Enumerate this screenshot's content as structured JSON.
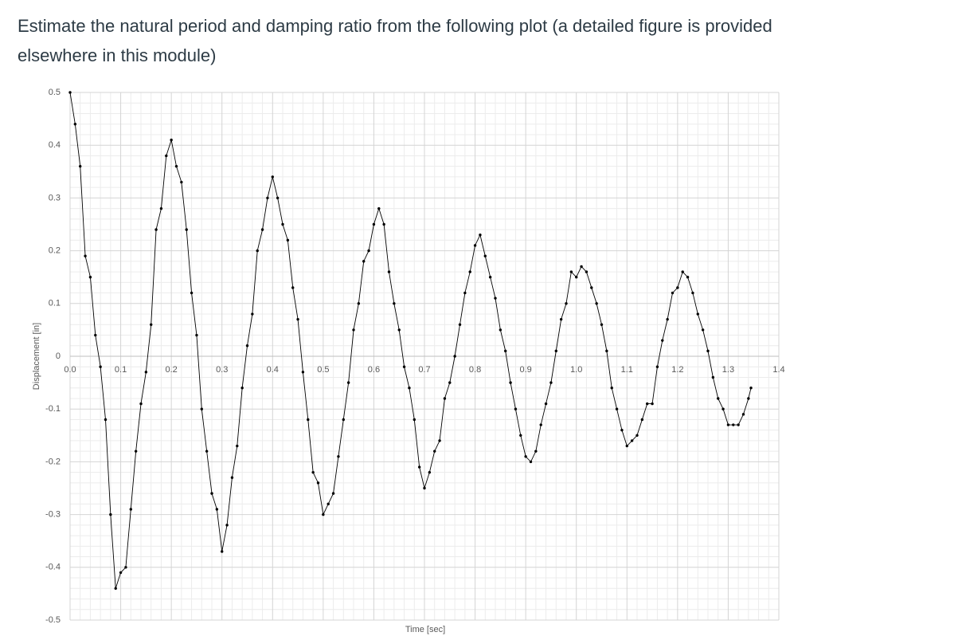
{
  "question": "Estimate the natural period and damping ratio from the following plot (a detailed figure is provided elsewhere in this module)",
  "chart_data": {
    "type": "line",
    "xlabel": "Time [sec]",
    "ylabel": "Displacement [in]",
    "x": [
      0,
      0.01,
      0.02,
      0.03,
      0.04,
      0.05,
      0.06,
      0.07,
      0.08,
      0.09,
      0.1,
      0.11,
      0.12,
      0.13,
      0.14,
      0.15,
      0.16,
      0.17,
      0.18,
      0.19,
      0.2,
      0.21,
      0.22,
      0.23,
      0.24,
      0.25,
      0.26,
      0.27,
      0.28,
      0.29,
      0.3,
      0.31,
      0.32,
      0.33,
      0.34,
      0.35,
      0.36,
      0.37,
      0.38,
      0.39,
      0.4,
      0.41,
      0.42,
      0.43,
      0.44,
      0.45,
      0.46,
      0.47,
      0.48,
      0.49,
      0.5,
      0.51,
      0.52,
      0.53,
      0.54,
      0.55,
      0.56,
      0.57,
      0.58,
      0.59,
      0.6,
      0.61,
      0.62,
      0.63,
      0.64,
      0.65,
      0.66,
      0.67,
      0.68,
      0.69,
      0.7,
      0.71,
      0.72,
      0.73,
      0.74,
      0.75,
      0.76,
      0.77,
      0.78,
      0.79,
      0.8,
      0.81,
      0.82,
      0.83,
      0.84,
      0.85,
      0.86,
      0.87,
      0.88,
      0.89,
      0.9,
      0.91,
      0.92,
      0.93,
      0.94,
      0.95,
      0.96,
      0.97,
      0.98,
      0.99,
      1.0,
      1.01,
      1.02,
      1.03,
      1.04,
      1.05,
      1.06,
      1.07,
      1.08,
      1.09,
      1.1,
      1.11,
      1.12,
      1.13,
      1.14,
      1.15,
      1.16,
      1.17,
      1.18,
      1.19,
      1.2,
      1.21,
      1.22,
      1.23,
      1.24,
      1.25,
      1.26,
      1.27,
      1.28,
      1.29,
      1.3,
      1.31,
      1.32,
      1.33,
      1.34,
      1.345
    ],
    "series": [
      {
        "color": "#000000",
        "values": [
          0.5,
          0.44,
          0.36,
          0.19,
          0.15,
          0.04,
          -0.02,
          -0.12,
          -0.3,
          -0.44,
          -0.41,
          -0.4,
          -0.29,
          -0.18,
          -0.09,
          -0.03,
          0.06,
          0.24,
          0.28,
          0.38,
          0.41,
          0.36,
          0.33,
          0.24,
          0.12,
          0.04,
          -0.1,
          -0.18,
          -0.26,
          -0.29,
          -0.37,
          -0.32,
          -0.23,
          -0.17,
          -0.06,
          0.02,
          0.08,
          0.2,
          0.24,
          0.3,
          0.34,
          0.3,
          0.25,
          0.22,
          0.13,
          0.07,
          -0.03,
          -0.12,
          -0.22,
          -0.24,
          -0.3,
          -0.28,
          -0.26,
          -0.19,
          -0.12,
          -0.05,
          0.05,
          0.1,
          0.18,
          0.2,
          0.25,
          0.28,
          0.25,
          0.16,
          0.1,
          0.05,
          -0.02,
          -0.06,
          -0.12,
          -0.21,
          -0.25,
          -0.22,
          -0.18,
          -0.16,
          -0.08,
          -0.05,
          0.0,
          0.06,
          0.12,
          0.16,
          0.21,
          0.23,
          0.19,
          0.15,
          0.11,
          0.05,
          0.01,
          -0.05,
          -0.1,
          -0.15,
          -0.19,
          -0.2,
          -0.18,
          -0.13,
          -0.09,
          -0.05,
          0.01,
          0.07,
          0.1,
          0.16,
          0.15,
          0.17,
          0.16,
          0.13,
          0.1,
          0.06,
          0.01,
          -0.06,
          -0.1,
          -0.14,
          -0.17,
          -0.16,
          -0.15,
          -0.12,
          -0.09,
          -0.09,
          -0.02,
          0.03,
          0.07,
          0.12,
          0.13,
          0.16,
          0.15,
          0.12,
          0.08,
          0.05,
          0.01,
          -0.04,
          -0.08,
          -0.1,
          -0.13,
          -0.13,
          -0.13,
          -0.11,
          -0.08,
          -0.06
        ]
      }
    ],
    "xlim": [
      0,
      1.4
    ],
    "ylim": [
      -0.5,
      0.5
    ],
    "xticks": [
      {
        "value": 0,
        "label": "0.0"
      },
      0.1,
      0.2,
      0.3,
      0.4,
      0.5,
      0.6,
      0.7,
      0.8,
      0.9,
      {
        "value": 1,
        "label": "1.0"
      },
      1.1,
      1.2,
      1.3,
      1.4
    ],
    "yticks": [
      -0.5,
      -0.4,
      -0.3,
      -0.2,
      -0.1,
      0,
      0.1,
      0.2,
      0.3,
      0.4,
      0.5
    ],
    "grid": true
  }
}
